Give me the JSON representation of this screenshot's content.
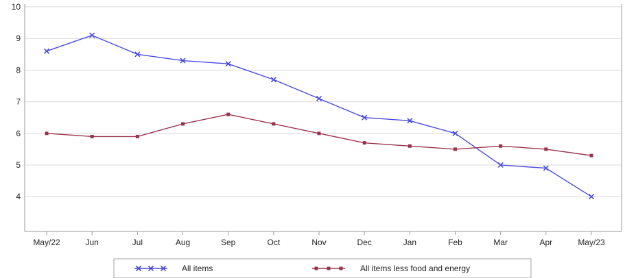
{
  "chart_data": {
    "type": "line",
    "categories": [
      "May/22",
      "Jun",
      "Jul",
      "Aug",
      "Sep",
      "Oct",
      "Nov",
      "Dec",
      "Jan",
      "Feb",
      "Mar",
      "Apr",
      "May/23"
    ],
    "series": [
      {
        "name": "All items",
        "color": "#4a4ae0",
        "marker": "x",
        "values": [
          8.6,
          9.1,
          8.5,
          8.3,
          8.2,
          7.7,
          7.1,
          6.5,
          6.4,
          6.0,
          5.0,
          4.9,
          4.0
        ]
      },
      {
        "name": "All items less food and energy",
        "color": "#99334d",
        "marker": "square",
        "values": [
          6.0,
          5.9,
          5.9,
          6.3,
          6.6,
          6.3,
          6.0,
          5.7,
          5.6,
          5.5,
          5.6,
          5.5,
          5.3
        ]
      }
    ],
    "yticks": [
      4,
      5,
      6,
      7,
      8,
      9,
      10
    ],
    "ylim": [
      2.9,
      10
    ],
    "grid": "horizontal",
    "legend_position": "bottom"
  }
}
